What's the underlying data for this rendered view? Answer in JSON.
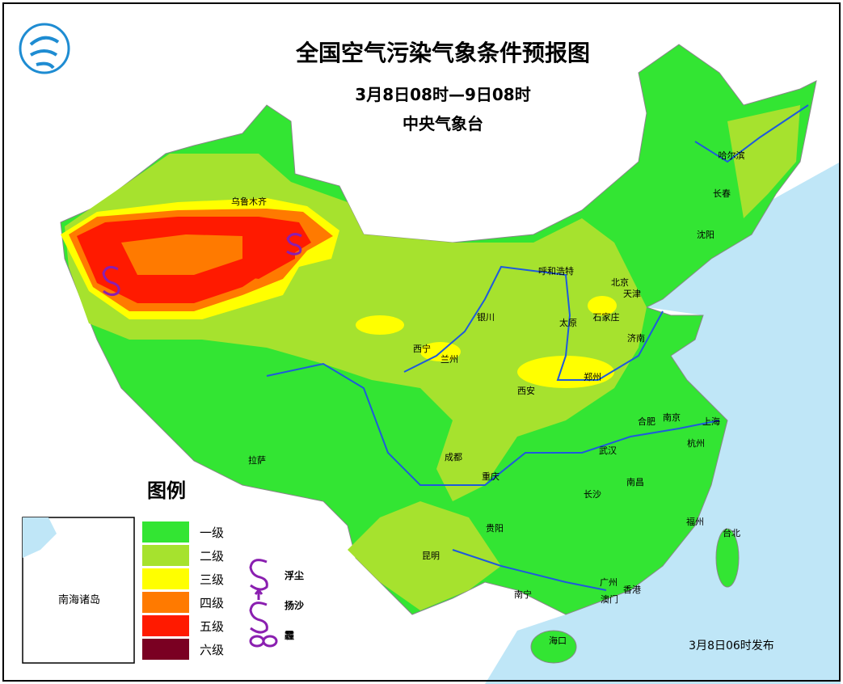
{
  "header": {
    "title": "全国空气污染气象条件预报图",
    "period": "3月8日08时—9日08时",
    "issuer": "中央气象台"
  },
  "legend": {
    "title": "图例",
    "levels": [
      {
        "label": "一级",
        "color": "#33e533"
      },
      {
        "label": "二级",
        "color": "#a6e22e"
      },
      {
        "label": "三级",
        "color": "#ffff00"
      },
      {
        "label": "四级",
        "color": "#ff7a00"
      },
      {
        "label": "五级",
        "color": "#ff1a00"
      },
      {
        "label": "六级",
        "color": "#7a0022"
      }
    ],
    "symbols": [
      {
        "label": "浮尘"
      },
      {
        "label": "扬沙"
      },
      {
        "label": "霾"
      }
    ]
  },
  "cities": [
    "乌鲁木齐",
    "哈尔滨",
    "长春",
    "沈阳",
    "呼和浩特",
    "北京",
    "天津",
    "石家庄",
    "太原",
    "济南",
    "银川",
    "西宁",
    "兰州",
    "郑州",
    "西安",
    "合肥",
    "南京",
    "上海",
    "杭州",
    "武汉",
    "成都",
    "重庆",
    "拉萨",
    "长沙",
    "南昌",
    "福州",
    "贵阳",
    "台北",
    "昆明",
    "南宁",
    "广州",
    "香港",
    "澳门",
    "海口"
  ],
  "inset": {
    "label": "南海诸岛"
  },
  "footer": {
    "issued": "3月8日06时发布"
  }
}
